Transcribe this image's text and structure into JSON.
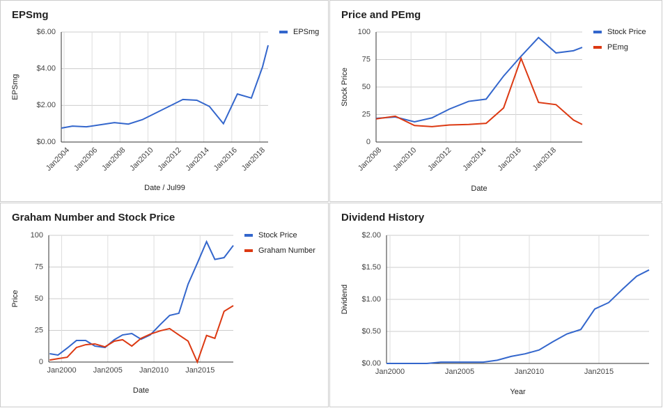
{
  "chart_data": [
    {
      "type": "line",
      "title": "EPSmg",
      "y_label": "EPSmg",
      "x_label": "Date / Jul99",
      "legend": "right",
      "grid": true,
      "x": [
        2003.8,
        2004.6,
        2005.6,
        2007.6,
        2008.6,
        2009.6,
        2012.5,
        2013.5,
        2014.4,
        2015.4,
        2016.4,
        2017.4,
        2018.2,
        2018.6
      ],
      "series": [
        {
          "name": "EPSmg",
          "color": "#3366cc",
          "values": [
            0.76,
            0.87,
            0.83,
            1.06,
            0.98,
            1.22,
            2.32,
            2.28,
            1.94,
            1.0,
            2.62,
            2.4,
            4.1,
            5.28
          ]
        }
      ],
      "xlim": [
        2003.8,
        2018.6
      ],
      "xticks": [
        {
          "value": 2004,
          "label": "Jan2004"
        },
        {
          "value": 2006,
          "label": "Jan2006"
        },
        {
          "value": 2008,
          "label": "Jan2008"
        },
        {
          "value": 2010,
          "label": "Jan2010"
        },
        {
          "value": 2012,
          "label": "Jan2012"
        },
        {
          "value": 2014,
          "label": "Jan2014"
        },
        {
          "value": 2016,
          "label": "Jan2016"
        },
        {
          "value": 2018,
          "label": "Jan2018"
        }
      ],
      "ylim": [
        0,
        6
      ],
      "yticks": [
        {
          "value": 0,
          "label": "$0.00"
        },
        {
          "value": 2,
          "label": "$2.00"
        },
        {
          "value": 4,
          "label": "$4.00"
        },
        {
          "value": 6,
          "label": "$6.00"
        }
      ]
    },
    {
      "type": "line",
      "title": "Price and PEmg",
      "y_label": "Stock Price",
      "x_label": "Date",
      "legend": "right",
      "grid": true,
      "x": [
        2008,
        2009.1,
        2010.2,
        2011.2,
        2012.2,
        2013.3,
        2014.3,
        2015.3,
        2016.3,
        2017.3,
        2018.3,
        2019.3,
        2019.8
      ],
      "series": [
        {
          "name": "Stock Price",
          "color": "#3366cc",
          "values": [
            21.5,
            22.8,
            18.4,
            22,
            30,
            37,
            39,
            60,
            78,
            95,
            81,
            83,
            86
          ]
        },
        {
          "name": "PEmg",
          "color": "#dc3912",
          "values": [
            21,
            23.5,
            15,
            14,
            15.5,
            16,
            17,
            31,
            76,
            36,
            34,
            20,
            16
          ]
        }
      ],
      "xlim": [
        2008,
        2019.8
      ],
      "xticks": [
        {
          "value": 2008,
          "label": "Jan2008"
        },
        {
          "value": 2010,
          "label": "Jan2010"
        },
        {
          "value": 2012,
          "label": "Jan2012"
        },
        {
          "value": 2014,
          "label": "Jan2014"
        },
        {
          "value": 2016,
          "label": "Jan2016"
        },
        {
          "value": 2018,
          "label": "Jan2018"
        }
      ],
      "ylim": [
        0,
        100
      ],
      "yticks": [
        0,
        25,
        50,
        75,
        100
      ]
    },
    {
      "type": "line",
      "title": "Graham Number and Stock Price",
      "y_label": "Price",
      "x_label": "Date",
      "legend": "right",
      "grid": true,
      "x": [
        1998.7,
        1999.6,
        2000.6,
        2001.6,
        2002.6,
        2003.6,
        2004.7,
        2005.7,
        2006.6,
        2007.6,
        2008.6,
        2009.6,
        2010.7,
        2011.7,
        2012.7,
        2013.7,
        2014.7,
        2015.7,
        2016.6,
        2017.6,
        2018.6
      ],
      "series": [
        {
          "name": "Stock Price",
          "color": "#3366cc",
          "values": [
            6.6,
            5.5,
            11,
            17,
            17,
            12.6,
            11.5,
            17.6,
            21.4,
            22.5,
            18,
            21.4,
            29.7,
            36.8,
            38.5,
            61.5,
            78,
            95,
            81,
            82.4,
            92
          ]
        },
        {
          "name": "Graham Number",
          "color": "#dc3912",
          "values": [
            1.6,
            2.7,
            3.8,
            11.5,
            13.7,
            14.3,
            12,
            16.5,
            17.6,
            12.6,
            18.7,
            22,
            24.7,
            26.4,
            21.4,
            16.5,
            0,
            21,
            18.7,
            40,
            44.5
          ]
        }
      ],
      "xlim": [
        1998.6,
        2018.6
      ],
      "xticks": [
        {
          "value": 2000,
          "label": "Jan2000"
        },
        {
          "value": 2005,
          "label": "Jan2005"
        },
        {
          "value": 2010,
          "label": "Jan2010"
        },
        {
          "value": 2015,
          "label": "Jan2015"
        }
      ],
      "ylim": [
        0,
        100
      ],
      "yticks": [
        0,
        25,
        50,
        75,
        100
      ]
    },
    {
      "type": "line",
      "title": "Dividend History",
      "y_label": "Dividend",
      "x_label": "Year",
      "grid": true,
      "x": [
        1999.75,
        2002.65,
        2003.65,
        2006.7,
        2007.7,
        2008.7,
        2009.7,
        2010.7,
        2011.7,
        2012.7,
        2013.7,
        2014.7,
        2015.7,
        2016.7,
        2017.7,
        2018.6
      ],
      "series": [
        {
          "name": "Dividend",
          "color": "#3366cc",
          "values": [
            0,
            0,
            0.02,
            0.02,
            0.05,
            0.11,
            0.15,
            0.21,
            0.34,
            0.46,
            0.53,
            0.85,
            0.95,
            1.16,
            1.36,
            1.46
          ]
        }
      ],
      "xlim": [
        1999.75,
        2018.6
      ],
      "xticks": [
        {
          "value": 2000,
          "label": "Jan2000"
        },
        {
          "value": 2005,
          "label": "Jan2005"
        },
        {
          "value": 2010,
          "label": "Jan2010"
        },
        {
          "value": 2015,
          "label": "Jan2015"
        }
      ],
      "ylim": [
        0,
        2
      ],
      "yticks": [
        {
          "value": 0,
          "label": "$0.00"
        },
        {
          "value": 0.5,
          "label": "$0.50"
        },
        {
          "value": 1,
          "label": "$1.00"
        },
        {
          "value": 1.5,
          "label": "$1.50"
        },
        {
          "value": 2,
          "label": "$2.00"
        }
      ]
    }
  ]
}
